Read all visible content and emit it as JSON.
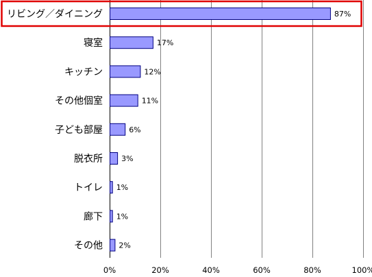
{
  "chart_data": {
    "type": "bar",
    "orientation": "horizontal",
    "categories": [
      "リビング／ダイニング",
      "寝室",
      "キッチン",
      "その他個室",
      "子ども部屋",
      "脱衣所",
      "トイレ",
      "廊下",
      "その他"
    ],
    "values": [
      87,
      17,
      12,
      11,
      6,
      3,
      1,
      1,
      2
    ],
    "value_labels": [
      "87%",
      "17%",
      "12%",
      "11%",
      "6%",
      "3%",
      "1%",
      "1%",
      "2%"
    ],
    "xlim": [
      0,
      100
    ],
    "x_ticks": [
      0,
      20,
      40,
      60,
      80,
      100
    ],
    "x_tick_labels": [
      "0%",
      "20%",
      "40%",
      "60%",
      "80%",
      "100%"
    ],
    "grid": "vertical",
    "highlighted_category": "リビング／ダイニング",
    "bar_fill": "#9999ff",
    "bar_stroke": "#000080",
    "highlight_color": "#e00000",
    "grid_color": "#808080"
  }
}
